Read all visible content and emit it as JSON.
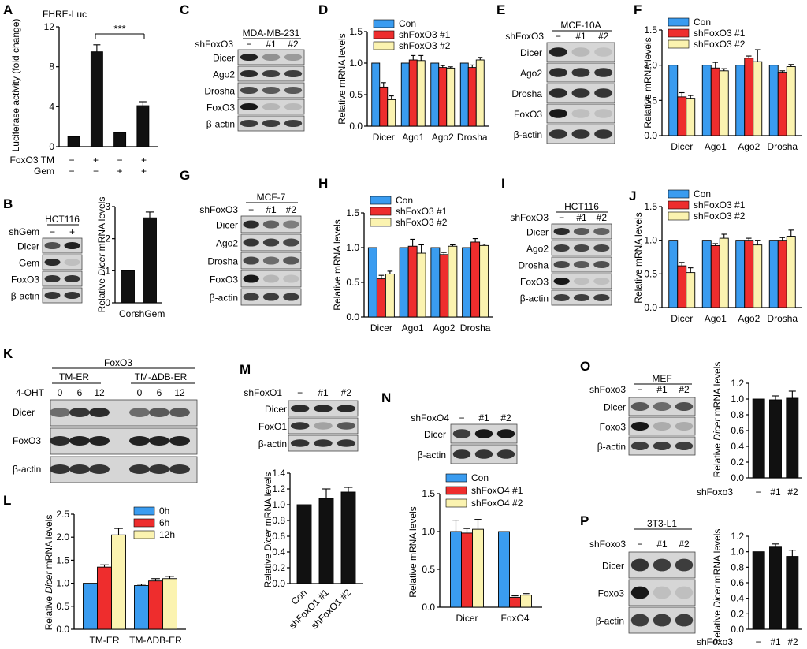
{
  "figure": {
    "panels": {
      "A": {
        "letter": "A",
        "title": "FHRE-Luc",
        "ylabel": "Luciferase activity (fold change)",
        "yticks": [
          "0",
          "4",
          "8",
          "12"
        ],
        "row_labels": [
          "FoxO3 TM",
          "Gem"
        ],
        "row_values": [
          [
            "−",
            "+",
            "−",
            "+"
          ],
          [
            "−",
            "−",
            "+",
            "+"
          ]
        ],
        "significance": "***"
      },
      "B": {
        "letter": "B",
        "blot_title": "HCT116",
        "header_label": "shGem",
        "lanes": [
          "−",
          "+"
        ],
        "bands": [
          "Dicer",
          "Gem",
          "FoxO3",
          "β-actin"
        ],
        "ylabel_pre": "Relative ",
        "ylabel_italic": "Dicer",
        "ylabel_post": " mRNA levels",
        "yticks": [
          "0",
          "1",
          "2",
          "3"
        ],
        "categories": [
          "Con",
          "shGem"
        ]
      },
      "C": {
        "letter": "C",
        "blot_title": "MDA-MB-231",
        "header_label": "shFoxO3",
        "lanes": [
          "−",
          "#1",
          "#2"
        ],
        "bands": [
          "Dicer",
          "Ago2",
          "Drosha",
          "FoxO3",
          "β-actin"
        ]
      },
      "D": {
        "letter": "D",
        "ylabel": "Relative mRNA levels",
        "yticks": [
          "0.0",
          "0.5",
          "1.0",
          "1.5"
        ],
        "legend": [
          "Con",
          "shFoxO3 #1",
          "shFoxO3 #2"
        ],
        "categories": [
          "Dicer",
          "Ago1",
          "Ago2",
          "Drosha"
        ]
      },
      "E": {
        "letter": "E",
        "blot_title": "MCF-10A",
        "header_label": "shFoxO3",
        "lanes": [
          "−",
          "#1",
          "#2"
        ],
        "bands": [
          "Dicer",
          "Ago2",
          "Drosha",
          "FoxO3",
          "β-actin"
        ]
      },
      "F": {
        "letter": "F",
        "ylabel": "Relative mRNA levels",
        "yticks": [
          "0.0",
          "0.5",
          "1.0",
          "1.5"
        ],
        "legend": [
          "Con",
          "shFoxO3 #1",
          "shFoxO3 #2"
        ],
        "categories": [
          "Dicer",
          "Ago1",
          "Ago2",
          "Drosha"
        ]
      },
      "G": {
        "letter": "G",
        "blot_title": "MCF-7",
        "header_label": "shFoxO3",
        "lanes": [
          "−",
          "#1",
          "#2"
        ],
        "bands": [
          "Dicer",
          "Ago2",
          "Drosha",
          "FoxO3",
          "β-actin"
        ]
      },
      "H": {
        "letter": "H",
        "ylabel": "Relative mRNA levels",
        "yticks": [
          "0.0",
          "0.5",
          "1.0",
          "1.5"
        ],
        "legend": [
          "Con",
          "shFoxO3 #1",
          "shFoxO3 #2"
        ],
        "categories": [
          "Dicer",
          "Ago1",
          "Ago2",
          "Drosha"
        ]
      },
      "I": {
        "letter": "I",
        "blot_title": "HCT116",
        "header_label": "shFoxO3",
        "lanes": [
          "−",
          "#1",
          "#2"
        ],
        "bands": [
          "Dicer",
          "Ago2",
          "Drosha",
          "FoxO3",
          "β-actin"
        ]
      },
      "J": {
        "letter": "J",
        "ylabel": "Relative mRNA levels",
        "yticks": [
          "0.0",
          "0.5",
          "1.0",
          "1.5"
        ],
        "legend": [
          "Con",
          "shFoxO3 #1",
          "shFoxO3 #2"
        ],
        "categories": [
          "Dicer",
          "Ago1",
          "Ago2",
          "Drosha"
        ]
      },
      "K": {
        "letter": "K",
        "top_title": "FoxO3",
        "groups": [
          "TM-ER",
          "TM-ΔDB-ER"
        ],
        "header_label": "4-OHT",
        "lanes": [
          "0",
          "6",
          "12",
          "0",
          "6",
          "12"
        ],
        "bands": [
          "Dicer",
          "FoxO3",
          "β-actin"
        ]
      },
      "L": {
        "letter": "L",
        "ylabel_pre": "Relative ",
        "ylabel_italic": "Dicer",
        "ylabel_post": " mRNA levels",
        "yticks": [
          "0.0",
          "0.5",
          "1.0",
          "1.5",
          "2.0",
          "2.5"
        ],
        "legend": [
          "0h",
          "6h",
          "12h"
        ],
        "categories": [
          "TM-ER",
          "TM-ΔDB-ER"
        ]
      },
      "M": {
        "letter": "M",
        "header_label": "shFoxO1",
        "lanes": [
          "−",
          "#1",
          "#2"
        ],
        "bands": [
          "Dicer",
          "FoxO1",
          "β-actin"
        ],
        "ylabel_pre": "Relative ",
        "ylabel_italic": "Dicer",
        "ylabel_post": " mRNA levels",
        "yticks": [
          "0.0",
          "0.2",
          "0.4",
          "0.6",
          "0.8",
          "1.0",
          "1.2",
          "1.4"
        ],
        "categories": [
          "Con",
          "shFoxO1 #1",
          "shFoxO1 #2"
        ]
      },
      "N": {
        "letter": "N",
        "header_label": "shFoxO4",
        "lanes": [
          "−",
          "#1",
          "#2"
        ],
        "bands": [
          "Dicer",
          "β-actin"
        ],
        "ylabel": "Relative mRNA levels",
        "yticks": [
          "0.0",
          "0.5",
          "1.0",
          "1.5"
        ],
        "legend": [
          "Con",
          "shFoxO4 #1",
          "shFoxO4 #2"
        ],
        "categories": [
          "Dicer",
          "FoxO4"
        ]
      },
      "O": {
        "letter": "O",
        "blot_title": "MEF",
        "header_label": "shFoxo3",
        "lanes": [
          "−",
          "#1",
          "#2"
        ],
        "bands": [
          "Dicer",
          "Foxo3",
          "β-actin"
        ],
        "ylabel_pre": "Relative ",
        "ylabel_italic": "Dicer",
        "ylabel_post": " mRNA levels",
        "yticks": [
          "0.0",
          "0.2",
          "0.4",
          "0.6",
          "0.8",
          "1.0",
          "1.2"
        ],
        "x_label": "shFoxo3",
        "categories": [
          "−",
          "#1",
          "#2"
        ]
      },
      "P": {
        "letter": "P",
        "blot_title": "3T3-L1",
        "header_label": "shFoxo3",
        "lanes": [
          "−",
          "#1",
          "#2"
        ],
        "bands": [
          "Dicer",
          "Foxo3",
          "β-actin"
        ],
        "ylabel_pre": "Relative ",
        "ylabel_italic": "Dicer",
        "ylabel_post": " mRNA levels",
        "yticks": [
          "0.0",
          "0.2",
          "0.4",
          "0.6",
          "0.8",
          "1.0",
          "1.2"
        ],
        "x_label": "shFoxo3",
        "categories": [
          "−",
          "#1",
          "#2"
        ]
      }
    }
  },
  "colors": {
    "con": "#3a9cf0",
    "sh1": "#ee2d2d",
    "sh2": "#fbf3b0",
    "black": "#111111"
  },
  "chart_data": [
    {
      "panel": "A",
      "type": "bar",
      "categories": [
        "1",
        "2",
        "3",
        "4"
      ],
      "values": [
        1.0,
        9.5,
        1.4,
        4.1
      ],
      "errors": [
        0,
        0.7,
        0,
        0.4
      ],
      "ylim": [
        0,
        12
      ]
    },
    {
      "panel": "B",
      "type": "bar",
      "categories": [
        "Con",
        "shGem"
      ],
      "values": [
        1.0,
        2.65
      ],
      "errors": [
        0,
        0.18
      ],
      "ylim": [
        0,
        3
      ]
    },
    {
      "panel": "D",
      "type": "bar",
      "categories": [
        "Dicer",
        "Ago1",
        "Ago2",
        "Drosha"
      ],
      "ylim": [
        0,
        1.5
      ],
      "series": [
        {
          "name": "Con",
          "values": [
            1.0,
            1.0,
            1.0,
            1.0
          ],
          "errors": [
            0,
            0,
            0,
            0
          ]
        },
        {
          "name": "shFoxO3 #1",
          "values": [
            0.62,
            1.05,
            0.93,
            0.93
          ],
          "errors": [
            0.07,
            0.07,
            0.03,
            0.04
          ]
        },
        {
          "name": "shFoxO3 #2",
          "values": [
            0.42,
            1.04,
            0.92,
            1.05
          ],
          "errors": [
            0.06,
            0.08,
            0.02,
            0.04
          ]
        }
      ]
    },
    {
      "panel": "F",
      "type": "bar",
      "categories": [
        "Dicer",
        "Ago1",
        "Ago2",
        "Drosha"
      ],
      "ylim": [
        0,
        1.5
      ],
      "series": [
        {
          "name": "Con",
          "values": [
            1.0,
            1.0,
            1.0,
            1.0
          ],
          "errors": [
            0,
            0,
            0,
            0
          ]
        },
        {
          "name": "shFoxO3 #1",
          "values": [
            0.55,
            0.96,
            1.1,
            0.9
          ],
          "errors": [
            0.06,
            0.08,
            0.03,
            0.02
          ]
        },
        {
          "name": "shFoxO3 #2",
          "values": [
            0.53,
            0.92,
            1.05,
            0.98
          ],
          "errors": [
            0.04,
            0.03,
            0.17,
            0.03
          ]
        }
      ]
    },
    {
      "panel": "H",
      "type": "bar",
      "categories": [
        "Dicer",
        "Ago1",
        "Ago2",
        "Drosha"
      ],
      "ylim": [
        0,
        1.5
      ],
      "series": [
        {
          "name": "Con",
          "values": [
            1.0,
            1.0,
            1.0,
            1.0
          ],
          "errors": [
            0,
            0,
            0,
            0
          ]
        },
        {
          "name": "shFoxO3 #1",
          "values": [
            0.55,
            1.02,
            0.9,
            1.08
          ],
          "errors": [
            0.05,
            0.1,
            0.03,
            0.05
          ]
        },
        {
          "name": "shFoxO3 #2",
          "values": [
            0.62,
            0.92,
            1.02,
            1.03
          ],
          "errors": [
            0.04,
            0.12,
            0.02,
            0.02
          ]
        }
      ]
    },
    {
      "panel": "J",
      "type": "bar",
      "categories": [
        "Dicer",
        "Ago1",
        "Ago2",
        "Drosha"
      ],
      "ylim": [
        0,
        1.5
      ],
      "series": [
        {
          "name": "Con",
          "values": [
            1.0,
            1.0,
            1.0,
            1.0
          ],
          "errors": [
            0,
            0,
            0,
            0
          ]
        },
        {
          "name": "shFoxO3 #1",
          "values": [
            0.62,
            0.92,
            1.0,
            1.0
          ],
          "errors": [
            0.05,
            0.03,
            0.03,
            0.04
          ]
        },
        {
          "name": "shFoxO3 #2",
          "values": [
            0.52,
            1.03,
            0.93,
            1.06
          ],
          "errors": [
            0.07,
            0.06,
            0.07,
            0.09
          ]
        }
      ]
    },
    {
      "panel": "L",
      "type": "bar",
      "categories": [
        "TM-ER",
        "TM-ΔDB-ER"
      ],
      "ylim": [
        0,
        2.5
      ],
      "series": [
        {
          "name": "0h",
          "values": [
            1.0,
            0.95
          ],
          "errors": [
            0,
            0.03
          ]
        },
        {
          "name": "6h",
          "values": [
            1.35,
            1.05
          ],
          "errors": [
            0.05,
            0.05
          ]
        },
        {
          "name": "12h",
          "values": [
            2.05,
            1.1
          ],
          "errors": [
            0.14,
            0.05
          ]
        }
      ]
    },
    {
      "panel": "M",
      "type": "bar",
      "categories": [
        "Con",
        "shFoxO1 #1",
        "shFoxO1 #2"
      ],
      "values": [
        1.0,
        1.08,
        1.16
      ],
      "errors": [
        0,
        0.12,
        0.06
      ],
      "ylim": [
        0,
        1.4
      ]
    },
    {
      "panel": "N",
      "type": "bar",
      "categories": [
        "Dicer",
        "FoxO4"
      ],
      "ylim": [
        0,
        1.5
      ],
      "series": [
        {
          "name": "Con",
          "values": [
            1.0,
            1.0
          ],
          "errors": [
            0.15,
            0
          ]
        },
        {
          "name": "shFoxO4 #1",
          "values": [
            0.98,
            0.13
          ],
          "errors": [
            0.06,
            0.02
          ]
        },
        {
          "name": "shFoxO4 #2",
          "values": [
            1.03,
            0.16
          ],
          "errors": [
            0.13,
            0.02
          ]
        }
      ]
    },
    {
      "panel": "O",
      "type": "bar",
      "categories": [
        "−",
        "#1",
        "#2"
      ],
      "values": [
        1.0,
        0.99,
        1.01
      ],
      "errors": [
        0,
        0.05,
        0.09
      ],
      "ylim": [
        0,
        1.2
      ]
    },
    {
      "panel": "P",
      "type": "bar",
      "categories": [
        "−",
        "#1",
        "#2"
      ],
      "values": [
        1.0,
        1.06,
        0.94
      ],
      "errors": [
        0,
        0.04,
        0.08
      ],
      "ylim": [
        0,
        1.2
      ]
    }
  ]
}
